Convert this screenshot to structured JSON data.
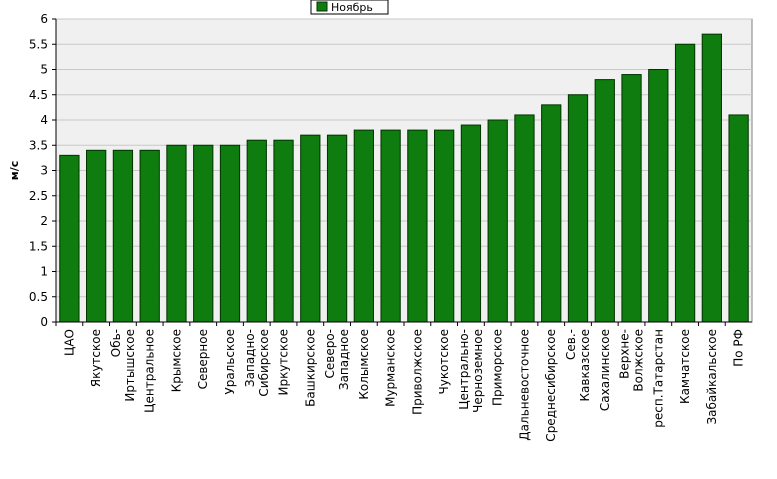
{
  "colors": {
    "bar": "#0e7c0e",
    "bar_stroke": "#003300",
    "plot_bg": "#f0f0f0",
    "grid": "#c8c8c8"
  },
  "legend": {
    "label": "Ноябрь"
  },
  "chart_data": {
    "type": "bar",
    "ylabel": "м/с",
    "ylim": [
      0,
      6
    ],
    "ytick_step": 0.5,
    "ytick_labels": [
      "0",
      "0.5",
      "1",
      "1.5",
      "2",
      "2.5",
      "3",
      "3.5",
      "4",
      "4.5",
      "5",
      "5.5",
      "6"
    ],
    "grid": true,
    "legend_position": "top-center",
    "categories": [
      [
        "ЦАО"
      ],
      [
        "Якутское"
      ],
      [
        "Обь-",
        "Иртышское"
      ],
      [
        "Центральное"
      ],
      [
        "Крымское"
      ],
      [
        "Северное"
      ],
      [
        "Уральское"
      ],
      [
        "Западно-",
        "Сибирское"
      ],
      [
        "Иркутское"
      ],
      [
        "Башкирское"
      ],
      [
        "Северо-",
        "Западное"
      ],
      [
        "Колымское"
      ],
      [
        "Мурманское"
      ],
      [
        "Приволжское"
      ],
      [
        "Чукотское"
      ],
      [
        "Центрально-",
        "Черноземное"
      ],
      [
        "Приморское"
      ],
      [
        "Дальневосточное"
      ],
      [
        "Среднесибирское"
      ],
      [
        "Сев.-",
        "Кавказское"
      ],
      [
        "Сахалинское"
      ],
      [
        "Верхне-",
        "Волжское"
      ],
      [
        "респ.Татарстан"
      ],
      [
        "Камчатское"
      ],
      [
        "Забайкальское"
      ],
      [
        "По РФ"
      ]
    ],
    "series": [
      {
        "name": "Ноябрь",
        "values": [
          3.3,
          3.4,
          3.4,
          3.4,
          3.5,
          3.5,
          3.5,
          3.6,
          3.6,
          3.7,
          3.7,
          3.8,
          3.8,
          3.8,
          3.8,
          3.9,
          4.0,
          4.1,
          4.3,
          4.5,
          4.8,
          4.9,
          5.0,
          5.5,
          5.7,
          4.1
        ]
      }
    ]
  }
}
